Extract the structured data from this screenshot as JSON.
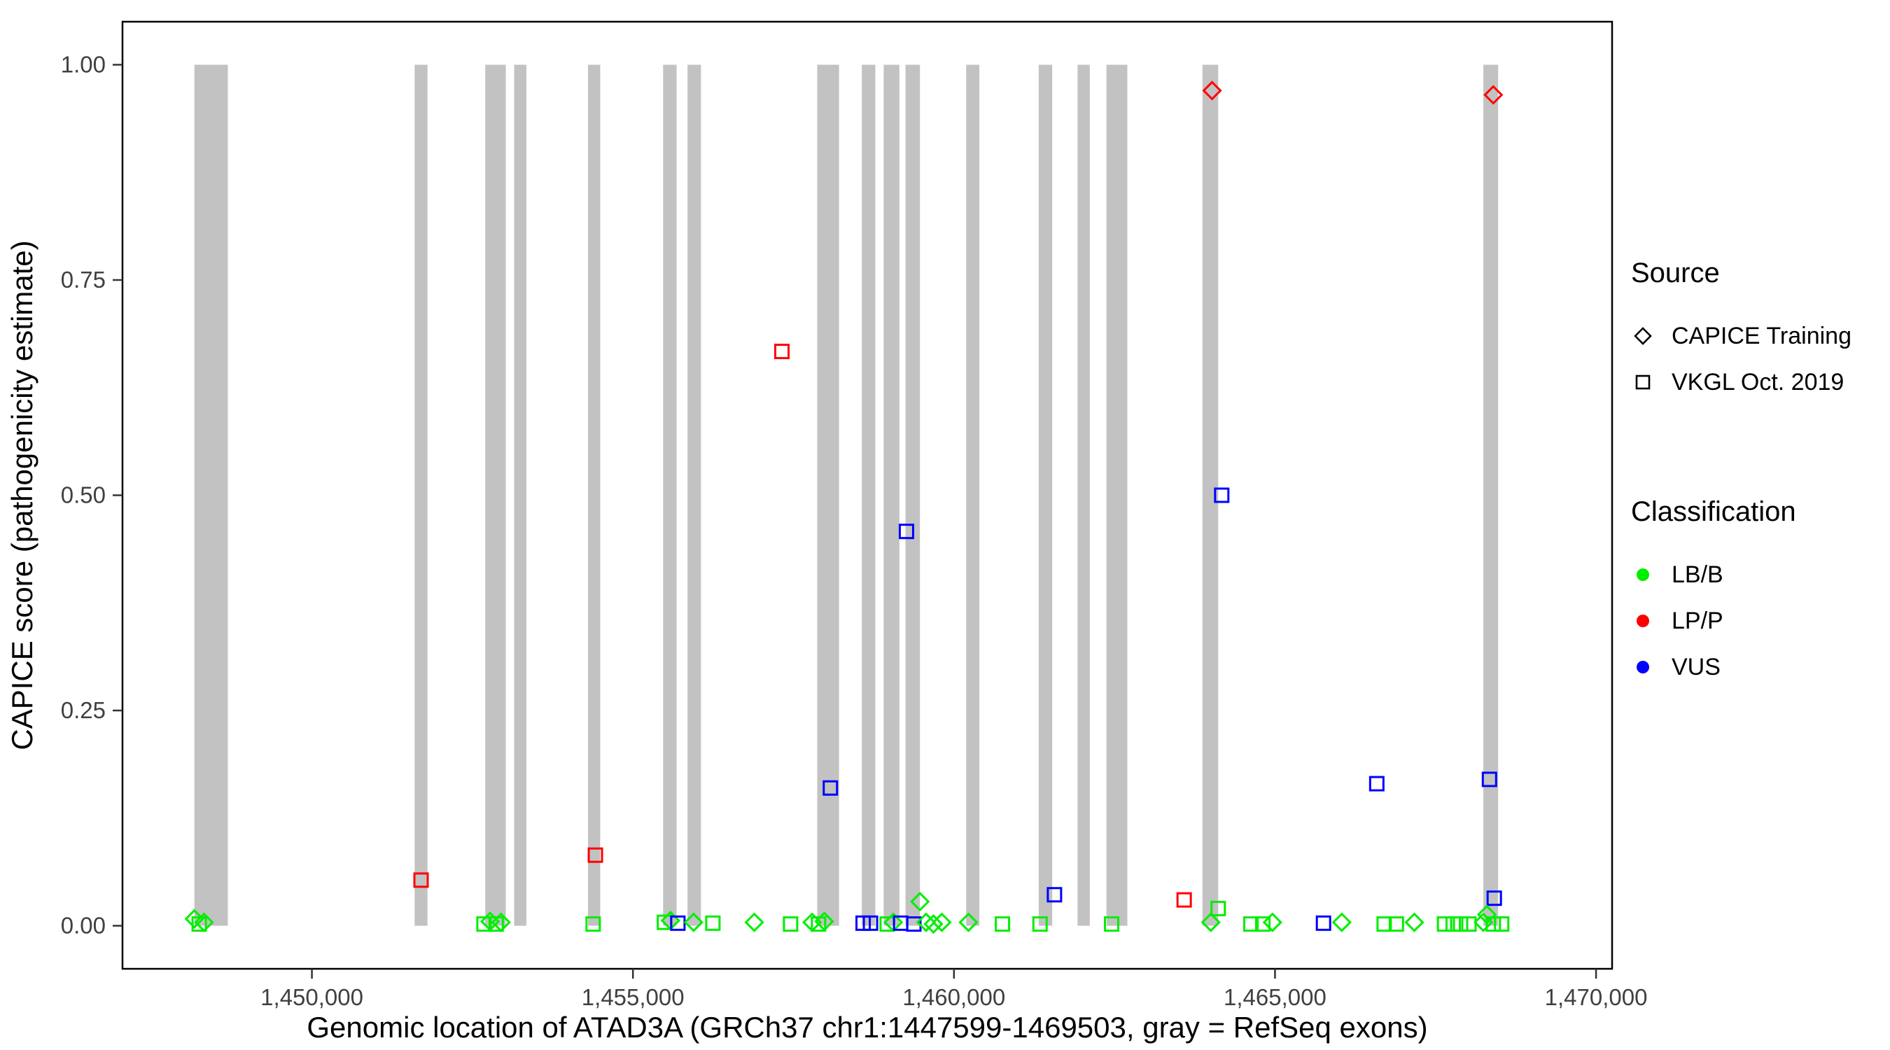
{
  "chart_data": {
    "type": "scatter",
    "title": "",
    "xlabel": "Genomic location of ATAD3A (GRCh37 chr1:1447599-1469503, gray = RefSeq exons)",
    "ylabel": "CAPICE score (pathogenicity estimate)",
    "xlim": [
      1447050,
      1470250
    ],
    "ylim": [
      -0.05,
      1.05
    ],
    "grid": false,
    "legend_position": "right",
    "x_ticks": [
      {
        "value": 1450000,
        "label": "1,450,000"
      },
      {
        "value": 1455000,
        "label": "1,455,000"
      },
      {
        "value": 1460000,
        "label": "1,460,000"
      },
      {
        "value": 1465000,
        "label": "1,465,000"
      },
      {
        "value": 1470000,
        "label": "1,470,000"
      }
    ],
    "y_ticks": [
      {
        "value": 0.0,
        "label": "0.00"
      },
      {
        "value": 0.25,
        "label": "0.25"
      },
      {
        "value": 0.5,
        "label": "0.50"
      },
      {
        "value": 0.75,
        "label": "0.75"
      },
      {
        "value": 1.0,
        "label": "1.00"
      }
    ],
    "colors": {
      "LB/B": "#00EE00",
      "LP/P": "#FF0000",
      "VUS": "#0000FF",
      "exon": "#C2C2C2",
      "axis": "#000000",
      "tick_label": "#404040"
    },
    "shape_by_source": {
      "CAPICE Training": "diamond",
      "VKGL Oct. 2019": "square"
    },
    "exons": [
      [
        1448170,
        1448690
      ],
      [
        1451600,
        1451800
      ],
      [
        1452700,
        1453020
      ],
      [
        1453150,
        1453340
      ],
      [
        1454300,
        1454490
      ],
      [
        1455470,
        1455680
      ],
      [
        1455850,
        1456060
      ],
      [
        1457870,
        1458210
      ],
      [
        1458565,
        1458775
      ],
      [
        1458905,
        1459150
      ],
      [
        1459245,
        1459470
      ],
      [
        1460190,
        1460395
      ],
      [
        1461320,
        1461530
      ],
      [
        1461925,
        1462115
      ],
      [
        1462375,
        1462700
      ],
      [
        1463870,
        1464115
      ],
      [
        1468245,
        1468475
      ]
    ],
    "points": [
      {
        "x": 1464020,
        "y": 0.97,
        "shape": "diamond",
        "class": "LP/P"
      },
      {
        "x": 1468400,
        "y": 0.965,
        "shape": "diamond",
        "class": "LP/P"
      },
      {
        "x": 1457320,
        "y": 0.667,
        "shape": "square",
        "class": "LP/P"
      },
      {
        "x": 1464170,
        "y": 0.5,
        "shape": "square",
        "class": "VUS"
      },
      {
        "x": 1459260,
        "y": 0.458,
        "shape": "square",
        "class": "VUS"
      },
      {
        "x": 1458075,
        "y": 0.16,
        "shape": "square",
        "class": "VUS"
      },
      {
        "x": 1466585,
        "y": 0.165,
        "shape": "square",
        "class": "VUS"
      },
      {
        "x": 1468340,
        "y": 0.17,
        "shape": "square",
        "class": "VUS"
      },
      {
        "x": 1451700,
        "y": 0.053,
        "shape": "square",
        "class": "LP/P"
      },
      {
        "x": 1454415,
        "y": 0.082,
        "shape": "square",
        "class": "LP/P"
      },
      {
        "x": 1461565,
        "y": 0.036,
        "shape": "square",
        "class": "VUS"
      },
      {
        "x": 1463585,
        "y": 0.03,
        "shape": "square",
        "class": "LP/P"
      },
      {
        "x": 1468415,
        "y": 0.032,
        "shape": "square",
        "class": "VUS"
      },
      {
        "x": 1459470,
        "y": 0.028,
        "shape": "diamond",
        "class": "LB/B"
      },
      {
        "x": 1464115,
        "y": 0.02,
        "shape": "square",
        "class": "LB/B"
      },
      {
        "x": 1468300,
        "y": 0.013,
        "shape": "diamond",
        "class": "LB/B"
      },
      {
        "x": 1448170,
        "y": 0.008,
        "shape": "diamond",
        "class": "LB/B"
      },
      {
        "x": 1448245,
        "y": 0.002,
        "shape": "square",
        "class": "LB/B"
      },
      {
        "x": 1448320,
        "y": 0.004,
        "shape": "diamond",
        "class": "LB/B"
      },
      {
        "x": 1452680,
        "y": 0.002,
        "shape": "square",
        "class": "LB/B"
      },
      {
        "x": 1452775,
        "y": 0.005,
        "shape": "diamond",
        "class": "LB/B"
      },
      {
        "x": 1452870,
        "y": 0.002,
        "shape": "square",
        "class": "LB/B"
      },
      {
        "x": 1452945,
        "y": 0.004,
        "shape": "diamond",
        "class": "LB/B"
      },
      {
        "x": 1454380,
        "y": 0.002,
        "shape": "square",
        "class": "LB/B"
      },
      {
        "x": 1455490,
        "y": 0.004,
        "shape": "square",
        "class": "LB/B"
      },
      {
        "x": 1455585,
        "y": 0.006,
        "shape": "diamond",
        "class": "LB/B"
      },
      {
        "x": 1455700,
        "y": 0.003,
        "shape": "square",
        "class": "VUS"
      },
      {
        "x": 1455945,
        "y": 0.004,
        "shape": "diamond",
        "class": "LB/B"
      },
      {
        "x": 1456245,
        "y": 0.003,
        "shape": "square",
        "class": "LB/B"
      },
      {
        "x": 1456890,
        "y": 0.004,
        "shape": "diamond",
        "class": "LB/B"
      },
      {
        "x": 1457455,
        "y": 0.002,
        "shape": "square",
        "class": "LB/B"
      },
      {
        "x": 1457790,
        "y": 0.004,
        "shape": "diamond",
        "class": "LB/B"
      },
      {
        "x": 1457890,
        "y": 0.002,
        "shape": "square",
        "class": "LB/B"
      },
      {
        "x": 1457980,
        "y": 0.005,
        "shape": "diamond",
        "class": "LB/B"
      },
      {
        "x": 1458585,
        "y": 0.003,
        "shape": "square",
        "class": "VUS"
      },
      {
        "x": 1458700,
        "y": 0.003,
        "shape": "square",
        "class": "VUS"
      },
      {
        "x": 1458960,
        "y": 0.002,
        "shape": "square",
        "class": "LB/B"
      },
      {
        "x": 1459055,
        "y": 0.004,
        "shape": "diamond",
        "class": "LB/B"
      },
      {
        "x": 1459170,
        "y": 0.003,
        "shape": "square",
        "class": "VUS"
      },
      {
        "x": 1459375,
        "y": 0.002,
        "shape": "square",
        "class": "VUS"
      },
      {
        "x": 1459565,
        "y": 0.004,
        "shape": "diamond",
        "class": "LB/B"
      },
      {
        "x": 1459680,
        "y": 0.002,
        "shape": "diamond",
        "class": "LB/B"
      },
      {
        "x": 1459810,
        "y": 0.004,
        "shape": "diamond",
        "class": "LB/B"
      },
      {
        "x": 1460225,
        "y": 0.004,
        "shape": "diamond",
        "class": "LB/B"
      },
      {
        "x": 1460755,
        "y": 0.002,
        "shape": "square",
        "class": "LB/B"
      },
      {
        "x": 1461340,
        "y": 0.002,
        "shape": "square",
        "class": "LB/B"
      },
      {
        "x": 1462455,
        "y": 0.002,
        "shape": "square",
        "class": "LB/B"
      },
      {
        "x": 1464000,
        "y": 0.004,
        "shape": "diamond",
        "class": "LB/B"
      },
      {
        "x": 1464625,
        "y": 0.002,
        "shape": "square",
        "class": "LB/B"
      },
      {
        "x": 1464810,
        "y": 0.002,
        "shape": "square",
        "class": "LB/B"
      },
      {
        "x": 1464960,
        "y": 0.004,
        "shape": "diamond",
        "class": "LB/B"
      },
      {
        "x": 1465755,
        "y": 0.003,
        "shape": "square",
        "class": "VUS"
      },
      {
        "x": 1466040,
        "y": 0.004,
        "shape": "diamond",
        "class": "LB/B"
      },
      {
        "x": 1466700,
        "y": 0.002,
        "shape": "square",
        "class": "LB/B"
      },
      {
        "x": 1466890,
        "y": 0.002,
        "shape": "square",
        "class": "LB/B"
      },
      {
        "x": 1467170,
        "y": 0.004,
        "shape": "diamond",
        "class": "LB/B"
      },
      {
        "x": 1467640,
        "y": 0.002,
        "shape": "square",
        "class": "LB/B"
      },
      {
        "x": 1467775,
        "y": 0.002,
        "shape": "square",
        "class": "LB/B"
      },
      {
        "x": 1467890,
        "y": 0.002,
        "shape": "square",
        "class": "LB/B"
      },
      {
        "x": 1468020,
        "y": 0.002,
        "shape": "square",
        "class": "LB/B"
      },
      {
        "x": 1468245,
        "y": 0.004,
        "shape": "diamond",
        "class": "LB/B"
      },
      {
        "x": 1468400,
        "y": 0.002,
        "shape": "square",
        "class": "LB/B"
      },
      {
        "x": 1468530,
        "y": 0.002,
        "shape": "square",
        "class": "LB/B"
      }
    ]
  },
  "legend": {
    "source": {
      "title": "Source",
      "items": [
        {
          "label": "CAPICE Training",
          "shape": "diamond"
        },
        {
          "label": "VKGL Oct. 2019",
          "shape": "square"
        }
      ]
    },
    "classification": {
      "title": "Classification",
      "items": [
        {
          "label": "LB/B"
        },
        {
          "label": "LP/P"
        },
        {
          "label": "VUS"
        }
      ]
    }
  }
}
